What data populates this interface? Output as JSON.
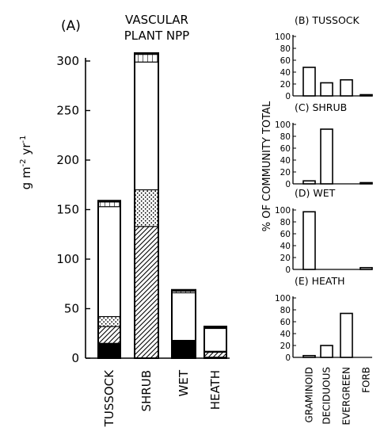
{
  "chart_data": [
    {
      "panel": "(A)",
      "type": "bar",
      "stacked": true,
      "title": "VASCULAR PLANT NPP",
      "title_lines": [
        "VASCULAR",
        "PLANT NPP"
      ],
      "ylabel_parts": [
        "g m",
        "-2",
        " yr",
        "-1"
      ],
      "ylim": [
        0,
        300
      ],
      "yticks": [
        "0",
        "50",
        "100",
        "150",
        "200",
        "250",
        "300"
      ],
      "categories": [
        "TUSSOCK",
        "SHRUB",
        "WET",
        "HEATH"
      ],
      "series": [
        {
          "pattern": "solid",
          "values": [
            15,
            0,
            18,
            1
          ]
        },
        {
          "pattern": "hatched",
          "values": [
            17,
            133,
            0,
            5
          ]
        },
        {
          "pattern": "dotted",
          "values": [
            10,
            37,
            0,
            1
          ]
        },
        {
          "pattern": "open",
          "values": [
            111,
            129,
            48,
            23
          ]
        },
        {
          "pattern": "dashed-top",
          "values": [
            6,
            9,
            3,
            2
          ]
        }
      ],
      "totals": [
        159,
        308,
        69,
        32
      ]
    },
    {
      "panel": "(B)",
      "type": "bar",
      "title": "TUSSOCK",
      "ylim": [
        0,
        100
      ],
      "yticks": [
        "0",
        "20",
        "40",
        "60",
        "80",
        "100"
      ],
      "categories": [
        "GRAMINOID",
        "DECIDUOUS",
        "EVERGREEN",
        "FORB"
      ],
      "values": [
        48,
        22,
        27,
        2
      ]
    },
    {
      "panel": "(C)",
      "type": "bar",
      "title": "SHRUB",
      "ylim": [
        0,
        100
      ],
      "yticks": [
        "0",
        "20",
        "40",
        "60",
        "80",
        "100"
      ],
      "categories": [
        "GRAMINOID",
        "DECIDUOUS",
        "EVERGREEN",
        "FORB"
      ],
      "values": [
        5,
        92,
        0,
        2
      ]
    },
    {
      "panel": "(D)",
      "type": "bar",
      "title": "WET",
      "ylim": [
        0,
        100
      ],
      "yticks": [
        "0",
        "20",
        "40",
        "60",
        "80",
        "100"
      ],
      "categories": [
        "GRAMINOID",
        "DECIDUOUS",
        "EVERGREEN",
        "FORB"
      ],
      "values": [
        97,
        0,
        0,
        3
      ]
    },
    {
      "panel": "(E)",
      "type": "bar",
      "title": "HEATH",
      "ylim": [
        0,
        100
      ],
      "yticks": [
        "0",
        "20",
        "40",
        "60",
        "80",
        "100"
      ],
      "categories": [
        "GRAMINOID",
        "DECIDUOUS",
        "EVERGREEN",
        "FORB"
      ],
      "values": [
        3,
        20,
        74,
        0
      ]
    }
  ],
  "shared_ylabel": "% OF COMMUNITY TOTAL",
  "shared_categories": [
    "GRAMINOID",
    "DECIDUOUS",
    "EVERGREEN",
    "FORB"
  ]
}
